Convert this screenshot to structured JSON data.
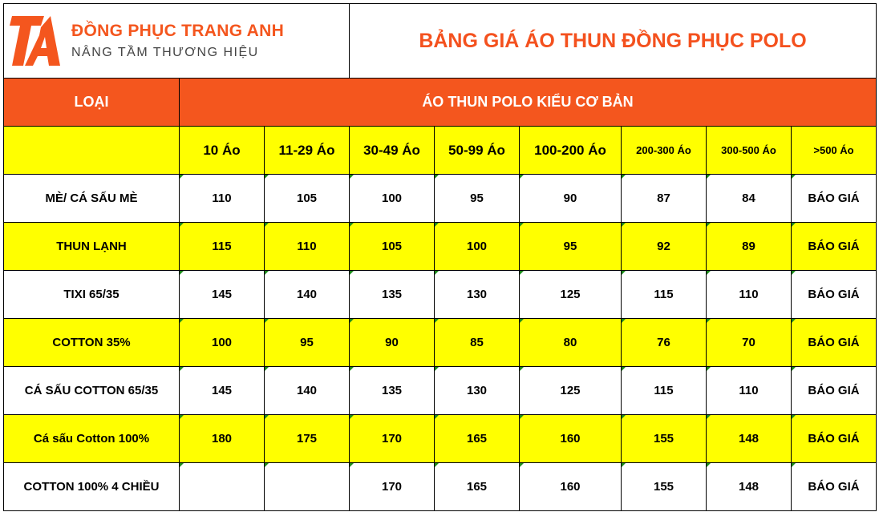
{
  "logo": {
    "mark": "TA",
    "brand": "ĐỒNG PHỤC TRANG ANH",
    "slogan": "NÂNG TẦM THƯƠNG HIỆU"
  },
  "title": "BẢNG GIÁ ÁO THUN ĐỒNG PHỤC POLO",
  "colors": {
    "accent": "#f4561e",
    "highlight": "#ffff00"
  },
  "header": {
    "type_label": "LOẠI",
    "group_label": "ÁO THUN POLO KIỂU CƠ BẢN",
    "quantities": [
      "10 Áo",
      "11-29 Áo",
      "30-49 Áo",
      "50-99 Áo",
      "100-200 Áo",
      "200-300 Áo",
      "300-500 Áo",
      ">500 Áo"
    ]
  },
  "rows": [
    {
      "name": "MÈ/ CÁ SẤU MÈ",
      "prices": [
        "110",
        "105",
        "100",
        "95",
        "90",
        "87",
        "84",
        "BÁO GIÁ"
      ]
    },
    {
      "name": "THUN LẠNH",
      "prices": [
        "115",
        "110",
        "105",
        "100",
        "95",
        "92",
        "89",
        "BÁO GIÁ"
      ]
    },
    {
      "name": "TIXI 65/35",
      "prices": [
        "145",
        "140",
        "135",
        "130",
        "125",
        "115",
        "110",
        "BÁO GIÁ"
      ]
    },
    {
      "name": "COTTON  35%",
      "prices": [
        "100",
        "95",
        "90",
        "85",
        "80",
        "76",
        "70",
        "BÁO GIÁ"
      ]
    },
    {
      "name": "CÁ SẤU COTTON 65/35",
      "prices": [
        "145",
        "140",
        "135",
        "130",
        "125",
        "115",
        "110",
        "BÁO GIÁ"
      ]
    },
    {
      "name": "Cá sấu Cotton 100%",
      "prices": [
        "180",
        "175",
        "170",
        "165",
        "160",
        "155",
        "148",
        "BÁO GIÁ"
      ]
    },
    {
      "name": "COTTON 100% 4 CHIỀU",
      "prices": [
        "",
        "",
        "170",
        "165",
        "160",
        "155",
        "148",
        "BÁO GIÁ"
      ]
    }
  ]
}
